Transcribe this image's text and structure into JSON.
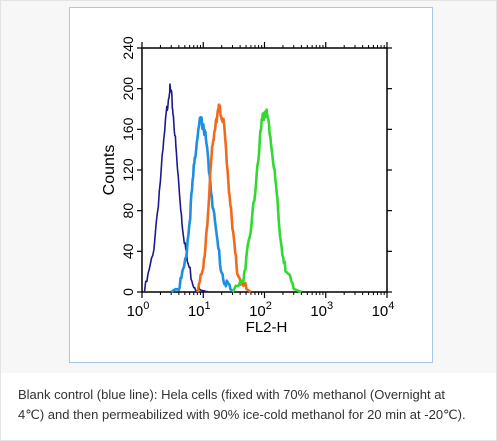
{
  "chart_data": {
    "type": "line",
    "title": "",
    "xlabel": "FL2-H",
    "ylabel": "Counts",
    "xscale": "log",
    "xlim": [
      1,
      10000
    ],
    "ylim": [
      0,
      240
    ],
    "x_ticks": [
      {
        "value": 1,
        "base": "10",
        "exp": "0"
      },
      {
        "value": 10,
        "base": "10",
        "exp": "1"
      },
      {
        "value": 100,
        "base": "10",
        "exp": "2"
      },
      {
        "value": 1000,
        "base": "10",
        "exp": "3"
      },
      {
        "value": 10000,
        "base": "10",
        "exp": "4"
      }
    ],
    "y_ticks": [
      0,
      40,
      80,
      120,
      160,
      200,
      240
    ],
    "grid": false,
    "legend": "none",
    "series": [
      {
        "color": "#1a1a8c",
        "x": [
          1.1,
          1.5,
          2.0,
          2.5,
          2.8,
          3.0,
          3.3,
          3.8,
          4.5,
          5.5,
          7.0,
          9.0,
          12.0
        ],
        "y": [
          0,
          35,
          110,
          175,
          200,
          195,
          170,
          120,
          70,
          30,
          8,
          2,
          0
        ]
      },
      {
        "color": "#1e8fe0",
        "x": [
          3.0,
          4.0,
          5.0,
          6.0,
          7.0,
          8.0,
          9.0,
          10.0,
          11.0,
          13.0,
          16.0,
          20.0,
          25.0,
          32.0
        ],
        "y": [
          0,
          5,
          25,
          70,
          120,
          155,
          168,
          165,
          150,
          110,
          60,
          20,
          5,
          0
        ]
      },
      {
        "color": "#f06a1e",
        "x": [
          8.0,
          10.0,
          12.0,
          14.0,
          16.0,
          18.0,
          20.0,
          22.0,
          25.0,
          30.0,
          36.0,
          45.0,
          60.0
        ],
        "y": [
          0,
          20,
          80,
          140,
          170,
          180,
          175,
          160,
          120,
          60,
          20,
          5,
          0
        ]
      },
      {
        "color": "#33d933",
        "x": [
          30.0,
          45.0,
          60.0,
          75.0,
          90.0,
          100.0,
          110.0,
          125.0,
          150.0,
          180.0,
          220.0,
          300.0,
          400.0
        ],
        "y": [
          0,
          15,
          60,
          120,
          165,
          178,
          175,
          155,
          110,
          55,
          20,
          3,
          0
        ]
      }
    ]
  },
  "caption": {
    "line1": "Blank control (blue line): Hela cells (fixed with 70% methanol (Overnight at",
    "line2": "4℃) and then permeabilized with 90% ice-cold methanol for 20 min at -20℃)."
  }
}
